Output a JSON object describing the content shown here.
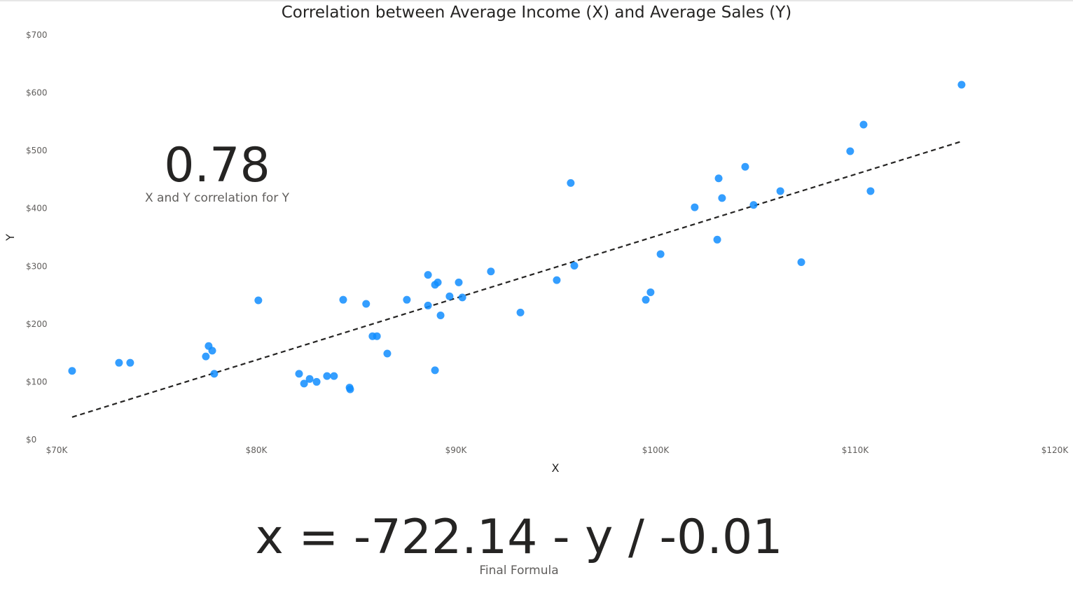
{
  "chart_data": {
    "type": "scatter",
    "title": "Correlation between Average Income (X) and Average Sales (Y)",
    "xlabel": "X",
    "ylabel": "Y",
    "xlim": [
      70000,
      120000
    ],
    "ylim": [
      0,
      700
    ],
    "x_ticks": [
      70000,
      80000,
      90000,
      100000,
      110000,
      120000
    ],
    "x_tick_labels": [
      "$70K",
      "$80K",
      "$90K",
      "$100K",
      "$110K",
      "$120K"
    ],
    "y_ticks": [
      0,
      100,
      200,
      300,
      400,
      500,
      600,
      700
    ],
    "y_tick_labels": [
      "$0",
      "$100",
      "$200",
      "$300",
      "$400",
      "$500",
      "$600",
      "$700"
    ],
    "grid": false,
    "point_color": "#118DFF",
    "trendline_color": "#252423",
    "points": [
      [
        70770,
        119
      ],
      [
        73120,
        133
      ],
      [
        73680,
        133
      ],
      [
        77470,
        144
      ],
      [
        77610,
        162
      ],
      [
        77790,
        154
      ],
      [
        77890,
        114
      ],
      [
        80100,
        241
      ],
      [
        82140,
        114
      ],
      [
        82390,
        97
      ],
      [
        82670,
        105
      ],
      [
        83020,
        100
      ],
      [
        83540,
        110
      ],
      [
        83890,
        110
      ],
      [
        84350,
        242
      ],
      [
        84670,
        90
      ],
      [
        84700,
        87
      ],
      [
        85500,
        235
      ],
      [
        85820,
        179
      ],
      [
        86040,
        179
      ],
      [
        86560,
        149
      ],
      [
        87540,
        242
      ],
      [
        88600,
        285
      ],
      [
        88600,
        232
      ],
      [
        88950,
        268
      ],
      [
        89090,
        272
      ],
      [
        88950,
        120
      ],
      [
        89230,
        215
      ],
      [
        89680,
        248
      ],
      [
        90140,
        272
      ],
      [
        90320,
        246
      ],
      [
        91750,
        291
      ],
      [
        93230,
        220
      ],
      [
        95050,
        276
      ],
      [
        95750,
        444
      ],
      [
        95930,
        301
      ],
      [
        99510,
        242
      ],
      [
        99750,
        255
      ],
      [
        100250,
        321
      ],
      [
        101960,
        402
      ],
      [
        103090,
        346
      ],
      [
        103160,
        452
      ],
      [
        103330,
        418
      ],
      [
        104490,
        472
      ],
      [
        104910,
        406
      ],
      [
        106250,
        430
      ],
      [
        107300,
        307
      ],
      [
        109750,
        499
      ],
      [
        110420,
        545
      ],
      [
        110770,
        430
      ],
      [
        115330,
        614
      ]
    ],
    "trendline": {
      "x": [
        70770,
        115330
      ],
      "y": [
        39,
        516
      ]
    }
  },
  "kpi": {
    "value": "0.78",
    "label": "X and Y correlation for Y"
  },
  "formula": {
    "value": "x = -722.14 - y / -0.01",
    "label": "Final Formula"
  }
}
